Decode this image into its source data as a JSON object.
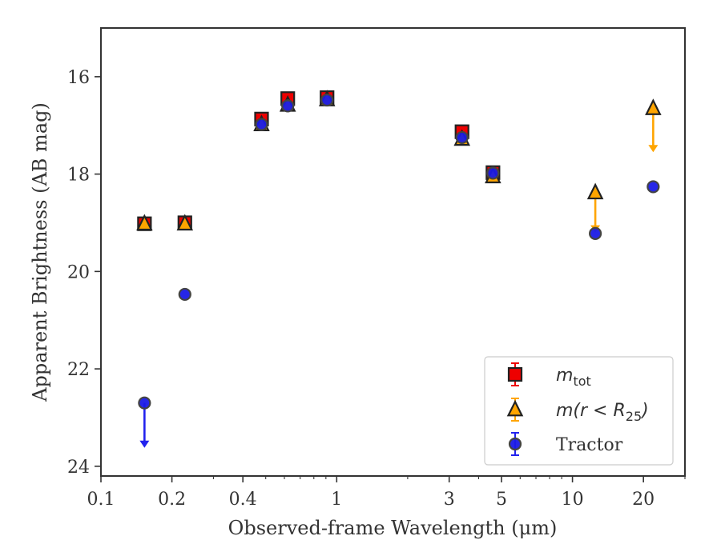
{
  "chart_data": {
    "type": "scatter",
    "title": "",
    "xlabel": "Observed-frame Wavelength (μm)",
    "ylabel": "Apparent Brightness (AB mag)",
    "x_scale": "log",
    "xlim": [
      0.1,
      30
    ],
    "ylim": [
      24.2,
      15.0
    ],
    "y_inverted": true,
    "grid": false,
    "legend_position": "lower-right",
    "x_ticks": [
      {
        "value": 0.1,
        "label": "0.1"
      },
      {
        "value": 0.2,
        "label": "0.2"
      },
      {
        "value": 0.4,
        "label": "0.4"
      },
      {
        "value": 1,
        "label": "1"
      },
      {
        "value": 3,
        "label": "3"
      },
      {
        "value": 5,
        "label": "5"
      },
      {
        "value": 10,
        "label": "10"
      },
      {
        "value": 20,
        "label": "20"
      }
    ],
    "y_ticks": [
      {
        "value": 16,
        "label": "16"
      },
      {
        "value": 18,
        "label": "18"
      },
      {
        "value": 20,
        "label": "20"
      },
      {
        "value": 22,
        "label": "22"
      },
      {
        "value": 24,
        "label": "24"
      }
    ],
    "series": [
      {
        "name": "m_tot",
        "legend_label": "m",
        "legend_sub": "tot",
        "marker": "square",
        "color": "#ee0000",
        "edge_color": "#222222",
        "points": [
          {
            "x": 0.153,
            "y": 19.02
          },
          {
            "x": 0.227,
            "y": 19.0
          },
          {
            "x": 0.48,
            "y": 16.87
          },
          {
            "x": 0.62,
            "y": 16.45
          },
          {
            "x": 0.91,
            "y": 16.43
          },
          {
            "x": 3.4,
            "y": 17.13
          },
          {
            "x": 4.6,
            "y": 17.97
          }
        ]
      },
      {
        "name": "m(r < R_25)",
        "legend_label": "m(r < R",
        "legend_sub": "25",
        "legend_suffix": ")",
        "marker": "triangle",
        "color": "#ffa500",
        "edge_color": "#222222",
        "points": [
          {
            "x": 0.153,
            "y": 19.02
          },
          {
            "x": 0.227,
            "y": 19.02
          },
          {
            "x": 0.48,
            "y": 16.98
          },
          {
            "x": 0.62,
            "y": 16.58
          },
          {
            "x": 0.91,
            "y": 16.47
          },
          {
            "x": 3.4,
            "y": 17.28
          },
          {
            "x": 4.6,
            "y": 18.05
          },
          {
            "x": 12.5,
            "y": 18.38,
            "upper_limit": true,
            "arrow_to": 19.2
          },
          {
            "x": 22.0,
            "y": 16.65,
            "upper_limit": true,
            "arrow_to": 17.55
          }
        ]
      },
      {
        "name": "Tractor",
        "legend_label": "Tractor",
        "marker": "circle",
        "color": "#1a1ae6",
        "edge_color": "#444444",
        "points": [
          {
            "x": 0.153,
            "y": 22.7,
            "upper_limit": true,
            "arrow_to": 23.62
          },
          {
            "x": 0.227,
            "y": 20.47
          },
          {
            "x": 0.48,
            "y": 16.98
          },
          {
            "x": 0.62,
            "y": 16.6
          },
          {
            "x": 0.91,
            "y": 16.48
          },
          {
            "x": 3.4,
            "y": 17.25
          },
          {
            "x": 4.6,
            "y": 17.98
          },
          {
            "x": 12.5,
            "y": 19.22
          },
          {
            "x": 22.0,
            "y": 18.26
          }
        ]
      }
    ]
  }
}
